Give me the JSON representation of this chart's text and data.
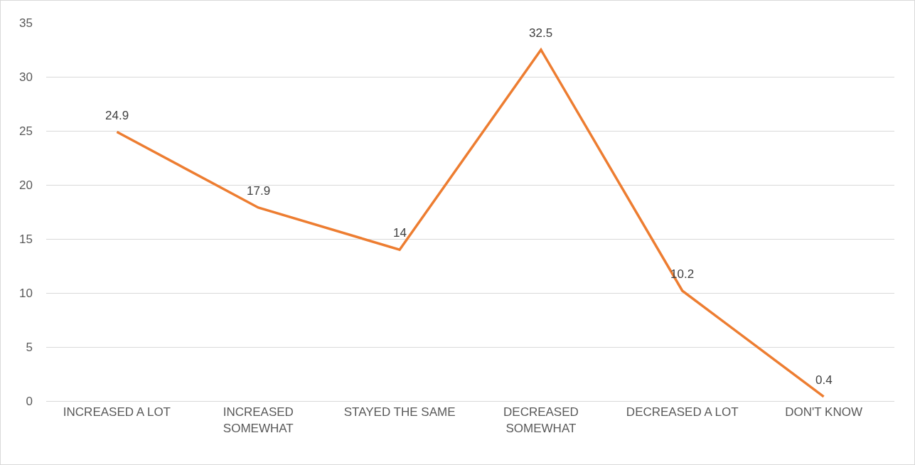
{
  "chart_data": {
    "type": "line",
    "categories": [
      "INCREASED A LOT",
      "INCREASED SOMEWHAT",
      "STAYED THE SAME",
      "DECREASED SOMEWHAT",
      "DECREASED A LOT",
      "DON'T KNOW"
    ],
    "series": [
      {
        "color": "#ed7d31",
        "values": [
          24.9,
          17.9,
          14,
          32.5,
          10.2,
          0.4
        ]
      }
    ],
    "ylim": [
      0,
      35
    ],
    "yticks": [
      0,
      5,
      10,
      15,
      20,
      25,
      30,
      35
    ],
    "grid": "y",
    "marker": "none",
    "line_style": "solid",
    "data_labels": true
  }
}
